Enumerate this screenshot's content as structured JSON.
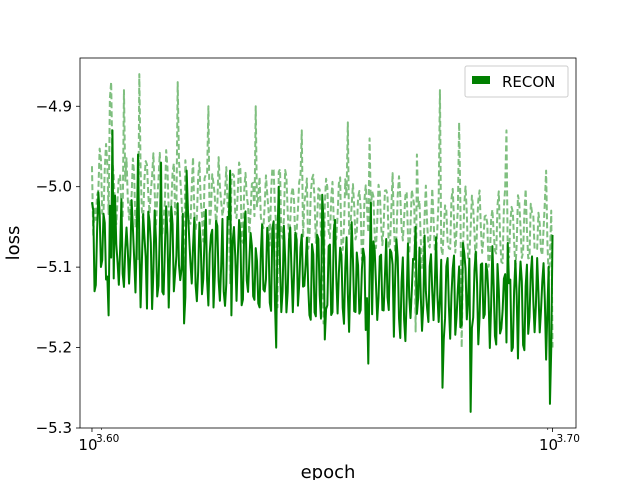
{
  "chart_data": {
    "type": "line",
    "title": "",
    "xlabel": "epoch",
    "ylabel": "loss",
    "x_scale": "log",
    "x_tick_labels": [
      {
        "base": "10",
        "exp": "3.60"
      },
      {
        "base": "10",
        "exp": "3.70"
      }
    ],
    "xlim": [
      3.5974,
      3.7051
    ],
    "ylim": [
      -5.3,
      -4.84
    ],
    "yticks": [
      -5.3,
      -5.2,
      -5.1,
      -5.0,
      -4.9
    ],
    "ytick_labels": [
      "−5.3",
      "−5.2",
      "−5.1",
      "−5.0",
      "−4.9"
    ],
    "grid": false,
    "legend": {
      "position": "top-right",
      "entries": [
        "RECON"
      ]
    },
    "series": [
      {
        "name": "RECON",
        "style": "solid",
        "color": "#008000",
        "trend_start": -5.07,
        "trend_end": -5.15,
        "dips": [
          [
            3.6005,
            -5.13
          ],
          [
            3.6037,
            -5.16
          ],
          [
            3.6105,
            -5.15
          ],
          [
            3.6201,
            -5.17
          ],
          [
            3.6302,
            -5.16
          ],
          [
            3.6401,
            -5.2
          ],
          [
            3.6505,
            -5.19
          ],
          [
            3.6601,
            -5.22
          ],
          [
            3.6702,
            -5.2
          ],
          [
            3.6762,
            -5.25
          ],
          [
            3.6821,
            -5.28
          ],
          [
            3.6903,
            -5.24
          ],
          [
            3.6995,
            -5.27
          ]
        ],
        "peaks": [
          [
            3.6045,
            -4.93
          ],
          [
            3.6101,
            -4.96
          ],
          [
            3.6151,
            -4.97
          ],
          [
            3.6205,
            -4.98
          ],
          [
            3.6301,
            -4.98
          ],
          [
            3.6405,
            -5.0
          ],
          [
            3.6501,
            -5.01
          ],
          [
            3.6605,
            -5.02
          ],
          [
            3.6702,
            -5.05
          ],
          [
            3.6805,
            -5.07
          ],
          [
            3.6902,
            -5.07
          ],
          [
            3.6999,
            -5.06
          ]
        ]
      },
      {
        "name": "",
        "style": "dashed",
        "color": "#7fbf7f",
        "trend_start": -5.0,
        "trend_end": -5.06,
        "dips": [
          [
            3.6003,
            -5.06
          ],
          [
            3.6101,
            -5.09
          ],
          [
            3.6201,
            -5.11
          ],
          [
            3.6301,
            -5.12
          ],
          [
            3.6403,
            -5.15
          ],
          [
            3.6503,
            -5.17
          ],
          [
            3.6603,
            -5.16
          ],
          [
            3.6703,
            -5.18
          ],
          [
            3.6803,
            -5.2
          ],
          [
            3.6901,
            -5.2
          ],
          [
            3.6999,
            -5.2
          ]
        ],
        "peaks": [
          [
            3.6038,
            -4.89
          ],
          [
            3.6043,
            -4.87
          ],
          [
            3.6069,
            -4.88
          ],
          [
            3.6103,
            -4.86
          ],
          [
            3.6187,
            -4.87
          ],
          [
            3.6252,
            -4.9
          ],
          [
            3.6355,
            -4.9
          ],
          [
            3.6455,
            -4.93
          ],
          [
            3.6555,
            -4.92
          ],
          [
            3.6603,
            -4.94
          ],
          [
            3.6705,
            -4.96
          ],
          [
            3.6755,
            -4.88
          ],
          [
            3.6796,
            -4.92
          ],
          [
            3.6901,
            -4.93
          ],
          [
            3.6985,
            -4.98
          ]
        ]
      }
    ]
  }
}
